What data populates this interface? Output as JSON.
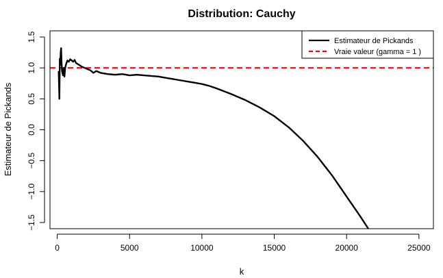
{
  "chart_data": {
    "type": "line",
    "title": "Distribution: Cauchy",
    "xlabel": "k",
    "ylabel": "Estimateur de Pickands",
    "xlim": [
      -500,
      26000
    ],
    "ylim": [
      -1.6,
      1.6
    ],
    "x_ticks": [
      0,
      5000,
      10000,
      15000,
      20000,
      25000
    ],
    "x_tick_labels": [
      "0",
      "5000",
      "10000",
      "15000",
      "20000",
      "25000"
    ],
    "y_ticks": [
      -1.5,
      -1.0,
      -0.5,
      0.0,
      0.5,
      1.0,
      1.5
    ],
    "y_tick_labels": [
      "−1.5",
      "−1.0",
      "−0.5",
      "0.0",
      "0.5",
      "1.0",
      "1.5"
    ],
    "grid": false,
    "legend_position": "top-right",
    "series": [
      {
        "name": "Estimateur de Pickands",
        "color": "#000000",
        "style": "solid",
        "x": [
          100,
          150,
          180,
          210,
          240,
          270,
          300,
          330,
          360,
          400,
          450,
          500,
          550,
          600,
          700,
          800,
          900,
          1000,
          1100,
          1200,
          1300,
          1500,
          1700,
          1900,
          2100,
          2300,
          2500,
          2700,
          3000,
          3500,
          4000,
          4500,
          5000,
          5500,
          6000,
          6500,
          7000,
          7500,
          8000,
          8500,
          9000,
          9500,
          10000,
          10500,
          11000,
          12000,
          13000,
          14000,
          15000,
          16000,
          17000,
          18000,
          19000,
          20000,
          21000,
          22000,
          22500
        ],
        "y": [
          0.95,
          0.5,
          1.15,
          1.05,
          1.25,
          1.32,
          1.1,
          0.95,
          0.92,
          0.88,
          1.0,
          0.86,
          1.0,
          1.05,
          1.12,
          1.1,
          1.14,
          1.12,
          1.1,
          1.13,
          1.08,
          1.05,
          1.02,
          1.0,
          0.98,
          0.96,
          0.92,
          0.95,
          0.92,
          0.9,
          0.89,
          0.9,
          0.88,
          0.89,
          0.88,
          0.87,
          0.86,
          0.84,
          0.82,
          0.8,
          0.78,
          0.76,
          0.74,
          0.71,
          0.67,
          0.58,
          0.48,
          0.36,
          0.22,
          0.04,
          -0.18,
          -0.44,
          -0.74,
          -1.08,
          -1.42,
          -1.78,
          -1.98
        ]
      },
      {
        "name": "Vraie valeur (gamma = 1 )",
        "color": "#ff0000",
        "style": "dashed",
        "x": [
          -500,
          26000
        ],
        "y": [
          1.0,
          1.0
        ]
      }
    ]
  }
}
